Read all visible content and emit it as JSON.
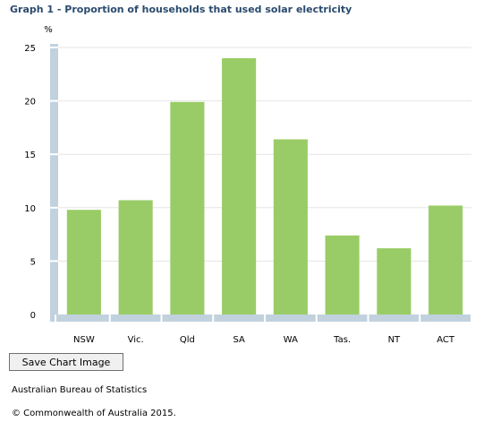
{
  "chart_data": {
    "type": "bar",
    "title": "Graph 1 - Proportion of households that used solar electricity",
    "ylabel": "%",
    "xlabel": "",
    "categories": [
      "NSW",
      "Vic.",
      "Qld",
      "SA",
      "WA",
      "Tas.",
      "NT",
      "ACT"
    ],
    "values": [
      9.8,
      10.7,
      19.9,
      24.0,
      16.4,
      7.4,
      6.2,
      10.2
    ],
    "ylim": [
      0,
      25
    ],
    "yticks": [
      0,
      5,
      10,
      15,
      20,
      25
    ],
    "grid": true,
    "legend": "none",
    "bar_color": "#99cc66",
    "axis_color": "#c1d1de"
  },
  "controls": {
    "save_label": "Save Chart Image"
  },
  "footer": {
    "source": "Australian Bureau of Statistics",
    "copyright": "© Commonwealth of Australia 2015."
  }
}
